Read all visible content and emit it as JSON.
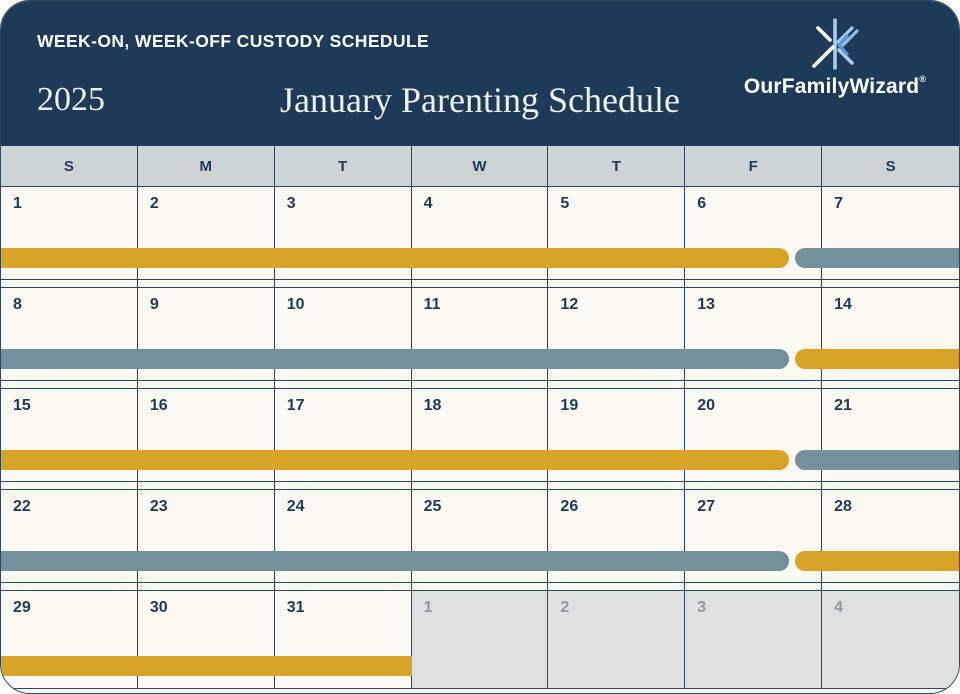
{
  "header": {
    "subtitle": "WEEK-ON, WEEK-OFF CUSTODY SCHEDULE",
    "year": "2025",
    "title": "January Parenting Schedule",
    "brand_name": "OurFamilyWizard",
    "brand_mark": "®"
  },
  "icons": {
    "brand": "ourfamilywizard-asterisk-icon"
  },
  "calendar": {
    "day_headers": [
      "S",
      "M",
      "T",
      "W",
      "T",
      "F",
      "S"
    ],
    "weeks": [
      {
        "days": [
          {
            "n": "1"
          },
          {
            "n": "2"
          },
          {
            "n": "3"
          },
          {
            "n": "4"
          },
          {
            "n": "5"
          },
          {
            "n": "6"
          },
          {
            "n": "7"
          }
        ],
        "bars": [
          {
            "color": "gold",
            "left_pct": 0,
            "width_pct": 82.3,
            "round_left": false,
            "round_right": true
          },
          {
            "color": "slate",
            "left_pct": 82.9,
            "width_pct": 17.1,
            "round_left": true,
            "round_right": false
          }
        ]
      },
      {
        "days": [
          {
            "n": "8"
          },
          {
            "n": "9"
          },
          {
            "n": "10"
          },
          {
            "n": "11"
          },
          {
            "n": "12"
          },
          {
            "n": "13"
          },
          {
            "n": "14"
          }
        ],
        "bars": [
          {
            "color": "slate",
            "left_pct": 0,
            "width_pct": 82.3,
            "round_left": false,
            "round_right": true
          },
          {
            "color": "gold",
            "left_pct": 82.9,
            "width_pct": 17.1,
            "round_left": true,
            "round_right": false
          }
        ]
      },
      {
        "days": [
          {
            "n": "15"
          },
          {
            "n": "16"
          },
          {
            "n": "17"
          },
          {
            "n": "18"
          },
          {
            "n": "19"
          },
          {
            "n": "20"
          },
          {
            "n": "21"
          }
        ],
        "bars": [
          {
            "color": "gold",
            "left_pct": 0,
            "width_pct": 82.3,
            "round_left": false,
            "round_right": true
          },
          {
            "color": "slate",
            "left_pct": 82.9,
            "width_pct": 17.1,
            "round_left": true,
            "round_right": false
          }
        ]
      },
      {
        "days": [
          {
            "n": "22"
          },
          {
            "n": "23"
          },
          {
            "n": "24"
          },
          {
            "n": "25"
          },
          {
            "n": "26"
          },
          {
            "n": "27"
          },
          {
            "n": "28"
          }
        ],
        "bars": [
          {
            "color": "slate",
            "left_pct": 0,
            "width_pct": 82.3,
            "round_left": false,
            "round_right": true
          },
          {
            "color": "gold",
            "left_pct": 82.9,
            "width_pct": 17.1,
            "round_left": true,
            "round_right": false
          }
        ]
      },
      {
        "days": [
          {
            "n": "29"
          },
          {
            "n": "30"
          },
          {
            "n": "31"
          },
          {
            "n": "1",
            "other_month": true
          },
          {
            "n": "2",
            "other_month": true
          },
          {
            "n": "3",
            "other_month": true
          },
          {
            "n": "4",
            "other_month": true
          }
        ],
        "bars": [
          {
            "color": "gold",
            "left_pct": 0,
            "width_pct": 42.86,
            "round_left": false,
            "round_right": false
          }
        ]
      }
    ]
  },
  "colors": {
    "navy": "#1E3A59",
    "border": "#2B4861",
    "gold": "#D7A427",
    "slate": "#74909B",
    "cellbg": "#FBF9F2",
    "dowbg": "#CDD4D5",
    "otherbg": "#DDE1DF",
    "othertext": "#8E999C",
    "logoblue": "#A8CCEE",
    "logoblue2": "#8FBCE8",
    "logochevron": "#5E9AD0"
  }
}
